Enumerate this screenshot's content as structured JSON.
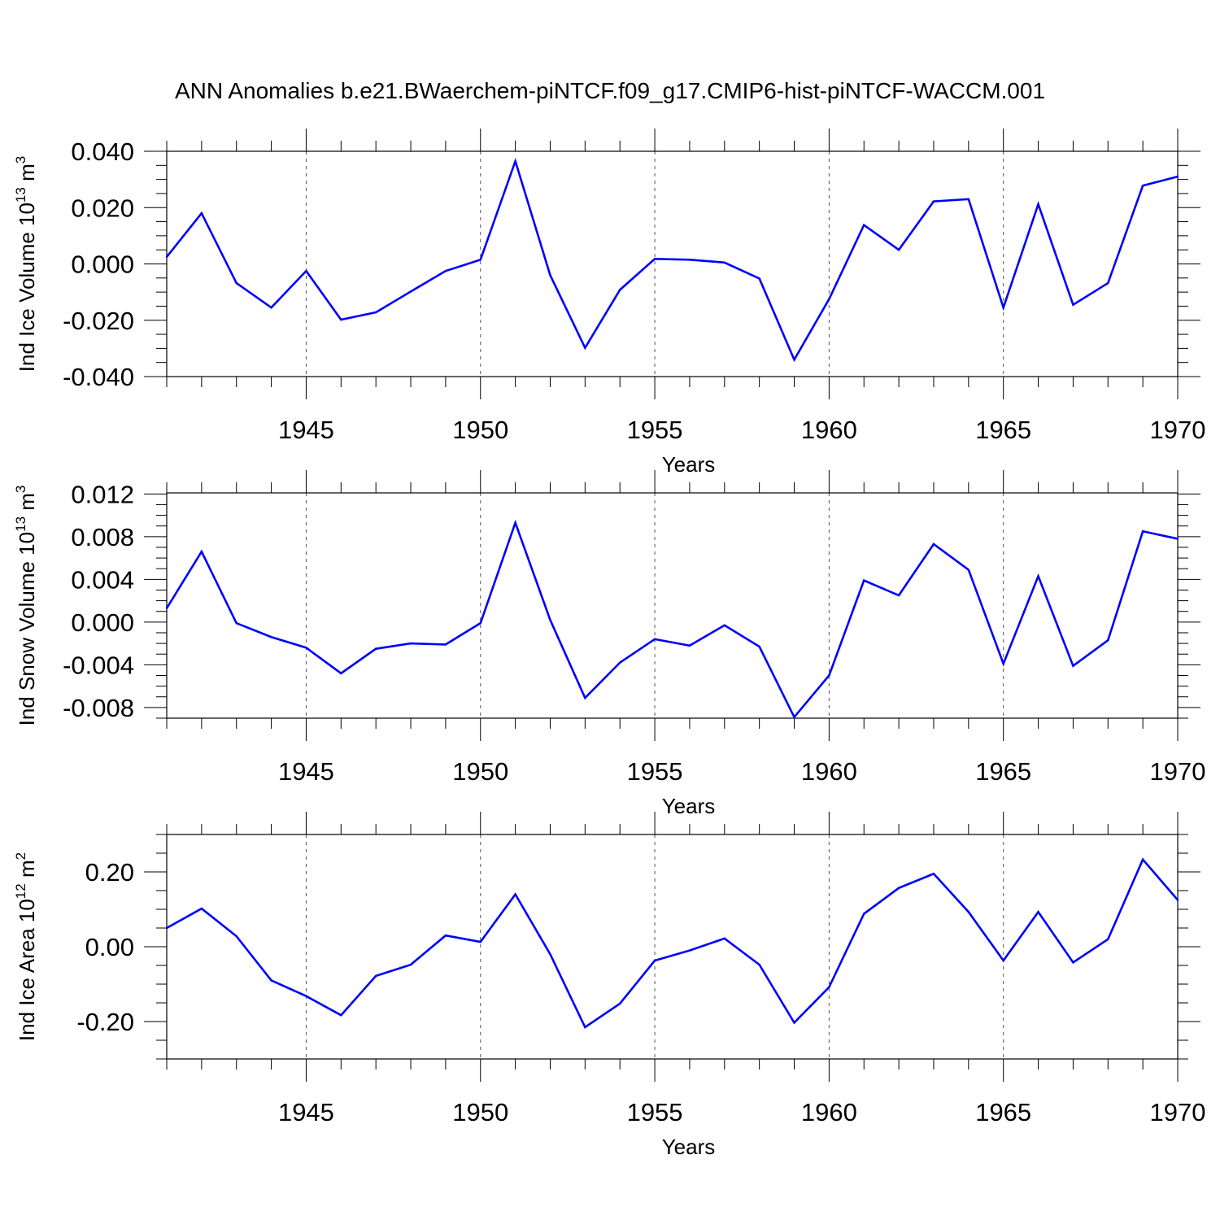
{
  "title": "ANN Anomalies b.e21.BWaerchem-piNTCF.f09_g17.CMIP6-hist-piNTCF-WACCM.001",
  "line_color": "#0000ff",
  "chart_data": [
    {
      "type": "line",
      "xlabel": "Years",
      "ylabel": "Ind Ice Volume 10",
      "ylabel_exp": "13",
      "ylabel_unit": " m",
      "ylabel_unit_exp": "3",
      "xlim": [
        1941,
        1970
      ],
      "ylim": [
        -0.04,
        0.04
      ],
      "xticks": [
        1945,
        1950,
        1955,
        1960,
        1965,
        1970
      ],
      "yticks": [
        -0.04,
        -0.02,
        0.0,
        0.02,
        0.04
      ],
      "ytick_labels": [
        "-0.040",
        "-0.020",
        "0.000",
        "0.020",
        "0.040"
      ],
      "x": [
        1941,
        1942,
        1943,
        1944,
        1945,
        1946,
        1947,
        1948,
        1949,
        1950,
        1951,
        1952,
        1953,
        1954,
        1955,
        1956,
        1957,
        1958,
        1959,
        1960,
        1961,
        1962,
        1963,
        1964,
        1965,
        1966,
        1967,
        1968,
        1969,
        1970
      ],
      "values": [
        0.0025,
        0.018,
        -0.0068,
        -0.0155,
        -0.0025,
        -0.0198,
        -0.0172,
        -0.0098,
        -0.0025,
        0.0015,
        0.0365,
        -0.004,
        -0.0298,
        -0.0092,
        0.0018,
        0.0015,
        0.0005,
        -0.0052,
        -0.034,
        -0.0125,
        0.0138,
        0.005,
        0.0222,
        0.023,
        -0.0155,
        0.0212,
        -0.0145,
        -0.0068,
        0.0278,
        0.031
      ]
    },
    {
      "type": "line",
      "xlabel": "Years",
      "ylabel": "Ind Snow Volume 10",
      "ylabel_exp": "13",
      "ylabel_unit": " m",
      "ylabel_unit_exp": "3",
      "xlim": [
        1941,
        1970
      ],
      "ylim": [
        -0.009,
        0.0121
      ],
      "xticks": [
        1945,
        1950,
        1955,
        1960,
        1965,
        1970
      ],
      "yticks": [
        -0.008,
        -0.004,
        0.0,
        0.004,
        0.008,
        0.012
      ],
      "ytick_labels": [
        "-0.008",
        "-0.004",
        "0.000",
        "0.004",
        "0.008",
        "0.012"
      ],
      "x": [
        1941,
        1942,
        1943,
        1944,
        1945,
        1946,
        1947,
        1948,
        1949,
        1950,
        1951,
        1952,
        1953,
        1954,
        1955,
        1956,
        1957,
        1958,
        1959,
        1960,
        1961,
        1962,
        1963,
        1964,
        1965,
        1966,
        1967,
        1968,
        1969,
        1970
      ],
      "values": [
        0.0013,
        0.0066,
        -0.0001,
        -0.0014,
        -0.0024,
        -0.0048,
        -0.0025,
        -0.002,
        -0.0021,
        -0.0001,
        0.0093,
        0.0002,
        -0.0071,
        -0.0038,
        -0.0016,
        -0.0022,
        -0.0003,
        -0.0023,
        -0.0089,
        -0.005,
        0.0039,
        0.0025,
        0.0073,
        0.0049,
        -0.0039,
        0.0043,
        -0.0041,
        -0.0017,
        0.0085,
        0.0078
      ]
    },
    {
      "type": "line",
      "xlabel": "Years",
      "ylabel": "Ind Ice Area 10",
      "ylabel_exp": "12",
      "ylabel_unit": " m",
      "ylabel_unit_exp": "2",
      "xlim": [
        1941,
        1970
      ],
      "ylim": [
        -0.3,
        0.3
      ],
      "xticks": [
        1945,
        1950,
        1955,
        1960,
        1965,
        1970
      ],
      "yticks": [
        -0.2,
        0.0,
        0.2
      ],
      "ytick_labels": [
        "-0.20",
        "0.00",
        "0.20"
      ],
      "x": [
        1941,
        1942,
        1943,
        1944,
        1945,
        1946,
        1947,
        1948,
        1949,
        1950,
        1951,
        1952,
        1953,
        1954,
        1955,
        1956,
        1957,
        1958,
        1959,
        1960,
        1961,
        1962,
        1963,
        1964,
        1965,
        1966,
        1967,
        1968,
        1969,
        1970
      ],
      "values": [
        0.05,
        0.102,
        0.028,
        -0.09,
        -0.132,
        -0.183,
        -0.078,
        -0.048,
        0.03,
        0.013,
        0.14,
        -0.02,
        -0.215,
        -0.152,
        -0.037,
        -0.01,
        0.022,
        -0.048,
        -0.203,
        -0.108,
        0.088,
        0.157,
        0.195,
        0.093,
        -0.037,
        0.093,
        -0.042,
        0.02,
        0.233,
        0.125
      ]
    }
  ]
}
